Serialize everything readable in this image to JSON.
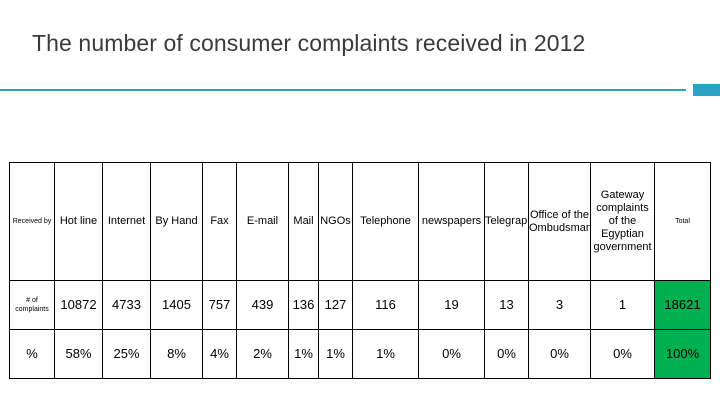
{
  "slide": {
    "title": "The number of consumer complaints received in 2012"
  },
  "table": {
    "corner_label": "Received by",
    "columns": [
      "Hot line",
      "Internet",
      "By Hand",
      "Fax",
      "E-mail",
      "Mail",
      "NGOs",
      "Telephone",
      "newspapers",
      "Telegraph",
      "Office of the Ombudsman",
      "Gateway complaints of the Egyptian government",
      "Total"
    ],
    "rows": [
      {
        "label": "# of complaints",
        "values": [
          "10872",
          "4733",
          "1405",
          "757",
          "439",
          "136",
          "127",
          "116",
          "19",
          "13",
          "3",
          "1",
          "18621"
        ]
      },
      {
        "label": "%",
        "values": [
          "58%",
          "25%",
          "8%",
          "4%",
          "2%",
          "1%",
          "1%",
          "1%",
          "0%",
          "0%",
          "0%",
          "0%",
          "100%"
        ]
      }
    ],
    "highlight_color": "#00b050"
  },
  "theme": {
    "accent": "#2aa3c7",
    "title_color": "#3a3a3a"
  }
}
